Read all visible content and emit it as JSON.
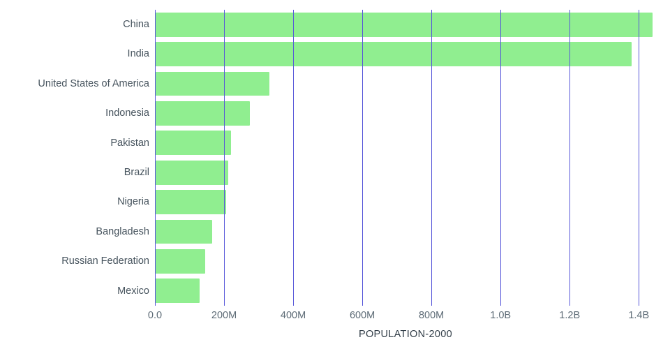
{
  "chart_data": {
    "type": "bar",
    "orientation": "horizontal",
    "title": "POPULATION-2000",
    "xlabel": "POPULATION-2000",
    "ylabel": "",
    "categories": [
      "China",
      "India",
      "United States of America",
      "Indonesia",
      "Pakistan",
      "Brazil",
      "Nigeria",
      "Bangladesh",
      "Russian Federation",
      "Mexico"
    ],
    "values_millions": [
      1439,
      1380,
      331,
      274,
      221,
      213,
      206,
      165,
      146,
      129
    ],
    "xlim_millions": [
      0,
      1450
    ],
    "x_ticks": [
      {
        "value": 0,
        "label": "0.0"
      },
      {
        "value": 200,
        "label": "200M"
      },
      {
        "value": 400,
        "label": "400M"
      },
      {
        "value": 600,
        "label": "600M"
      },
      {
        "value": 800,
        "label": "800M"
      },
      {
        "value": 1000,
        "label": "1.0B"
      },
      {
        "value": 1200,
        "label": "1.2B"
      },
      {
        "value": 1400,
        "label": "1.4B"
      }
    ],
    "grid": true,
    "legend": "none",
    "colors": {
      "bar": "#90ee90",
      "gridline": "#5757d9",
      "category_label": "#47545e",
      "tick_label": "#5d6b76",
      "axis_title": "#323e48"
    }
  }
}
